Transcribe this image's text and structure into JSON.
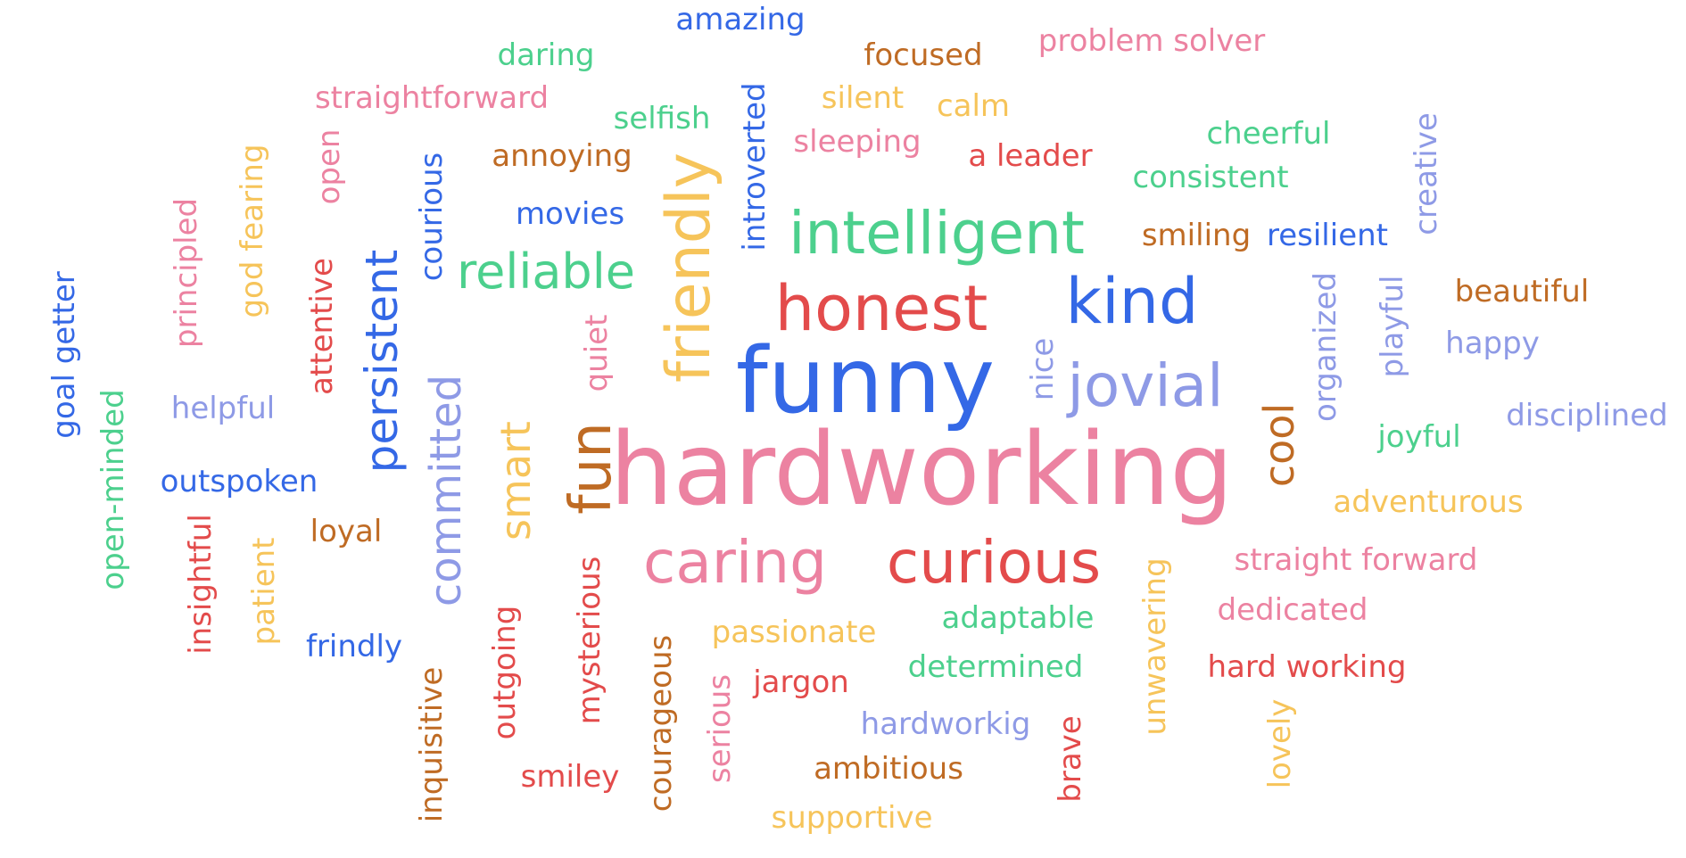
{
  "colors": {
    "blue": "#3468e6",
    "green": "#4cd08d",
    "pink": "#ec82a1",
    "red": "#e34b4b",
    "yellow": "#f6c45a",
    "brown": "#bf6b24",
    "lavender": "#8e9ae6"
  },
  "words": [
    {
      "text": "hardworking",
      "color": "pink"
    },
    {
      "text": "funny",
      "color": "blue"
    },
    {
      "text": "intelligent",
      "color": "green"
    },
    {
      "text": "honest",
      "color": "red"
    },
    {
      "text": "kind",
      "color": "blue"
    },
    {
      "text": "jovial",
      "color": "lavender"
    },
    {
      "text": "caring",
      "color": "pink"
    },
    {
      "text": "curious",
      "color": "red"
    },
    {
      "text": "friendly",
      "color": "yellow"
    },
    {
      "text": "fun",
      "color": "brown"
    },
    {
      "text": "persistent",
      "color": "blue"
    },
    {
      "text": "committed",
      "color": "lavender"
    },
    {
      "text": "smart",
      "color": "yellow"
    },
    {
      "text": "reliable",
      "color": "green"
    },
    {
      "text": "cool",
      "color": "brown"
    },
    {
      "text": "amazing",
      "color": "blue"
    },
    {
      "text": "daring",
      "color": "green"
    },
    {
      "text": "focused",
      "color": "brown"
    },
    {
      "text": "problem solver",
      "color": "pink"
    },
    {
      "text": "straightforward",
      "color": "pink"
    },
    {
      "text": "silent",
      "color": "yellow"
    },
    {
      "text": "calm",
      "color": "yellow"
    },
    {
      "text": "selfish",
      "color": "green"
    },
    {
      "text": "sleeping",
      "color": "pink"
    },
    {
      "text": "annoying",
      "color": "brown"
    },
    {
      "text": "a leader",
      "color": "red"
    },
    {
      "text": "cheerful",
      "color": "green"
    },
    {
      "text": "consistent",
      "color": "green"
    },
    {
      "text": "movies",
      "color": "blue"
    },
    {
      "text": "smiling",
      "color": "brown"
    },
    {
      "text": "resilient",
      "color": "blue"
    },
    {
      "text": "beautiful",
      "color": "brown"
    },
    {
      "text": "happy",
      "color": "lavender"
    },
    {
      "text": "disciplined",
      "color": "lavender"
    },
    {
      "text": "joyful",
      "color": "green"
    },
    {
      "text": "helpful",
      "color": "lavender"
    },
    {
      "text": "outspoken",
      "color": "blue"
    },
    {
      "text": "loyal",
      "color": "brown"
    },
    {
      "text": "adventurous",
      "color": "yellow"
    },
    {
      "text": "straight forward",
      "color": "pink"
    },
    {
      "text": "dedicated",
      "color": "pink"
    },
    {
      "text": "hard working",
      "color": "red"
    },
    {
      "text": "adaptable",
      "color": "green"
    },
    {
      "text": "passionate",
      "color": "yellow"
    },
    {
      "text": "determined",
      "color": "green"
    },
    {
      "text": "jargon",
      "color": "red"
    },
    {
      "text": "hardworkig",
      "color": "lavender"
    },
    {
      "text": "frindly",
      "color": "blue"
    },
    {
      "text": "smiley",
      "color": "red"
    },
    {
      "text": "ambitious",
      "color": "brown"
    },
    {
      "text": "supportive",
      "color": "yellow"
    },
    {
      "text": "goal getter",
      "color": "blue"
    },
    {
      "text": "open-minded",
      "color": "green"
    },
    {
      "text": "principled",
      "color": "pink"
    },
    {
      "text": "god fearing",
      "color": "yellow"
    },
    {
      "text": "open",
      "color": "pink"
    },
    {
      "text": "attentive",
      "color": "red"
    },
    {
      "text": "courious",
      "color": "blue"
    },
    {
      "text": "introverted",
      "color": "blue"
    },
    {
      "text": "quiet",
      "color": "pink"
    },
    {
      "text": "nice",
      "color": "lavender"
    },
    {
      "text": "creative",
      "color": "lavender"
    },
    {
      "text": "organized",
      "color": "lavender"
    },
    {
      "text": "playful",
      "color": "lavender"
    },
    {
      "text": "insightful",
      "color": "red"
    },
    {
      "text": "patient",
      "color": "yellow"
    },
    {
      "text": "inquisitive",
      "color": "brown"
    },
    {
      "text": "outgoing",
      "color": "red"
    },
    {
      "text": "mysterious",
      "color": "red"
    },
    {
      "text": "courageous",
      "color": "brown"
    },
    {
      "text": "serious",
      "color": "pink"
    },
    {
      "text": "unwavering",
      "color": "yellow"
    },
    {
      "text": "brave",
      "color": "red"
    },
    {
      "text": "lovely",
      "color": "yellow"
    }
  ]
}
